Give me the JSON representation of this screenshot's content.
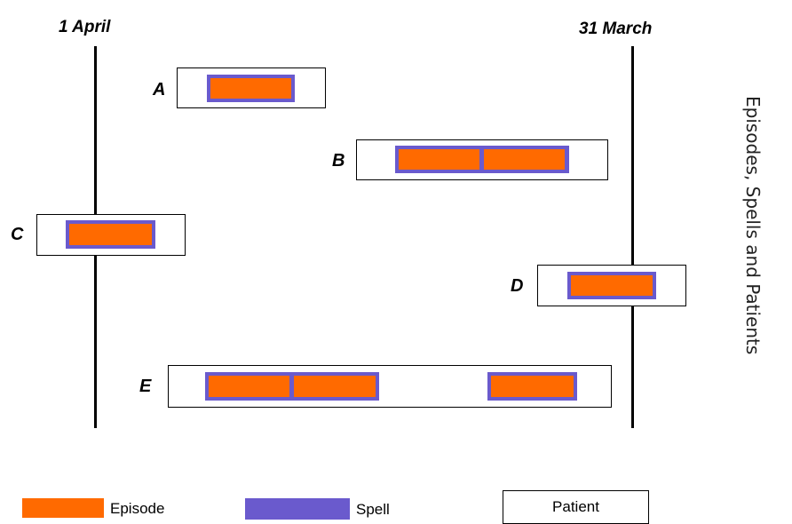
{
  "diagram": {
    "side_title": "Episodes, Spells and Patients",
    "start_label": "1 April",
    "end_label": "31 March",
    "colors": {
      "episode": "#FF6A00",
      "spell": "#6A5ACD",
      "patient_border": "#000000"
    },
    "patients": [
      {
        "label": "A",
        "spells": [
          {
            "episodes": 1
          }
        ]
      },
      {
        "label": "B",
        "spells": [
          {
            "episodes": 2
          }
        ]
      },
      {
        "label": "C",
        "spells": [
          {
            "episodes": 1
          }
        ]
      },
      {
        "label": "D",
        "spells": [
          {
            "episodes": 1
          }
        ]
      },
      {
        "label": "E",
        "spells": [
          {
            "episodes": 2
          },
          {
            "episodes": 1
          }
        ]
      }
    ]
  },
  "legend": {
    "episode": "Episode",
    "spell": "Spell",
    "patient": "Patient"
  }
}
